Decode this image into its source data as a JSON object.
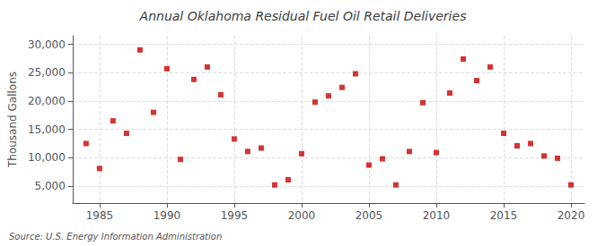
{
  "chart_data": {
    "type": "scatter",
    "title": "Annual Oklahoma Residual Fuel Oil Retail Deliveries",
    "ylabel": "Thousand Gallons",
    "annotation": "Source: U.S. Energy Information Administration",
    "color": "#cc0000",
    "marker": "square",
    "x": [
      1984,
      1985,
      1986,
      1987,
      1988,
      1989,
      1990,
      1991,
      1992,
      1993,
      1994,
      1995,
      1996,
      1997,
      1998,
      1999,
      2000,
      2001,
      2002,
      2003,
      2004,
      2005,
      2006,
      2007,
      2008,
      2009,
      2010,
      2011,
      2012,
      2013,
      2014,
      2015,
      2016,
      2017,
      2018,
      2019,
      2020
    ],
    "values": [
      12500,
      8100,
      16500,
      14300,
      29000,
      18000,
      25700,
      9700,
      23800,
      26000,
      21100,
      13300,
      11100,
      11700,
      5200,
      6100,
      10700,
      19800,
      20900,
      22400,
      24800,
      8700,
      9800,
      5200,
      11100,
      19700,
      10900,
      21400,
      27400,
      23600,
      26000,
      14300,
      12100,
      12500,
      10300,
      9900,
      5200
    ],
    "xlim": [
      1983,
      2021
    ],
    "ylim": [
      2000,
      31500
    ],
    "xticks": [
      1985,
      1990,
      1995,
      2000,
      2005,
      2010,
      2015,
      2020
    ],
    "yticks": [
      {
        "value": 5000,
        "label": "5,000"
      },
      {
        "value": 10000,
        "label": "10,000"
      },
      {
        "value": 15000,
        "label": "15,000"
      },
      {
        "value": 20000,
        "label": "20,000"
      },
      {
        "value": 25000,
        "label": "25,000"
      },
      {
        "value": 30000,
        "label": "30,000"
      }
    ],
    "grid": true
  }
}
